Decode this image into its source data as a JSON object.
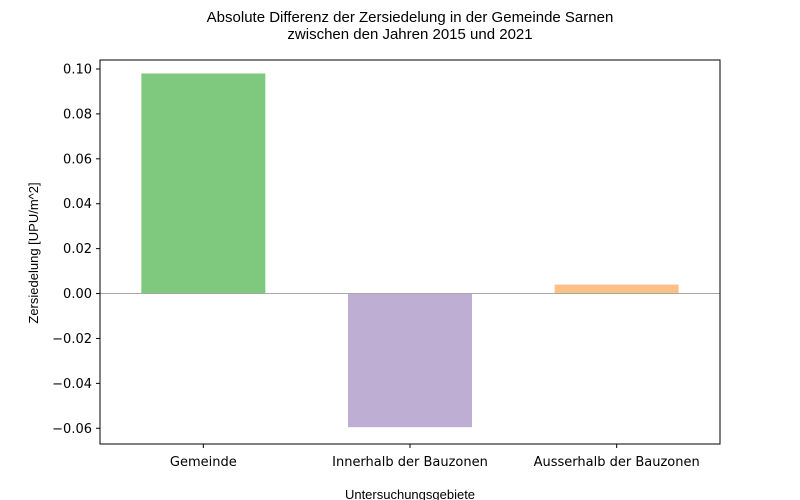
{
  "chart_data": {
    "type": "bar",
    "title": "Absolute Differenz der Zersiedelung in der Gemeinde Sarnen",
    "subtitle": "zwischen den Jahren 2015 und 2021",
    "xlabel": "Untersuchungsgebiete",
    "ylabel": "Zersiedelung [UPU/m^2]",
    "categories": [
      "Gemeinde",
      "Innerhalb der Bauzonen",
      "Ausserhalb der Bauzonen"
    ],
    "values": [
      0.098,
      -0.0595,
      0.004
    ],
    "colors": [
      "#7fc97f",
      "#beaed4",
      "#fdc086"
    ],
    "ylim": [
      -0.067,
      0.104
    ],
    "yticks": [
      -0.06,
      -0.04,
      -0.02,
      0.0,
      0.02,
      0.04,
      0.06,
      0.08,
      0.1
    ],
    "ytick_labels": [
      "−0.06",
      "−0.04",
      "−0.02",
      "0.00",
      "0.02",
      "0.04",
      "0.06",
      "0.08",
      "0.10"
    ],
    "zero_line": true,
    "grid": false
  }
}
